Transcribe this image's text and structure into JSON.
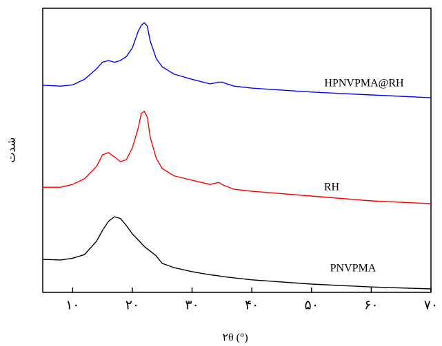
{
  "chart_data": {
    "type": "line",
    "xlabel": "۲θ (°)",
    "ylabel": "شدت",
    "xlim": [
      5,
      70
    ],
    "ylim": [
      0,
      100
    ],
    "xticks": [
      {
        "value": 10,
        "label": "۱۰"
      },
      {
        "value": 20,
        "label": "۲۰"
      },
      {
        "value": 30,
        "label": "۳۰"
      },
      {
        "value": 40,
        "label": "۴۰"
      },
      {
        "value": 50,
        "label": "۵۰"
      },
      {
        "value": 60,
        "label": "۶۰"
      },
      {
        "value": 70,
        "label": "۷۰"
      }
    ],
    "x": [
      5,
      8,
      10,
      12,
      14,
      15,
      16,
      17,
      18,
      19,
      20,
      21,
      21.5,
      22,
      22.5,
      23,
      24,
      25,
      27,
      30,
      33,
      34.5,
      35,
      37,
      40,
      50,
      60,
      70
    ],
    "series": [
      {
        "name": "HPNVPMA@RH",
        "color": "#0000ff",
        "values": [
          72.9,
          72.6,
          73,
          75,
          78.7,
          81,
          81.6,
          81,
          81.6,
          83,
          86,
          92,
          94,
          94.9,
          93.7,
          88.4,
          82.3,
          79.4,
          76.8,
          75,
          73.4,
          74,
          74,
          72.6,
          71.9,
          70.5,
          69.5,
          68.5
        ]
      },
      {
        "name": "RH",
        "color": "#ff0000",
        "values": [
          37,
          37,
          38,
          40,
          44.3,
          48.4,
          49.2,
          47.7,
          46,
          46.7,
          50.8,
          58,
          63,
          63.7,
          61.7,
          54.5,
          47.2,
          43.6,
          41,
          39.5,
          38,
          38.7,
          38,
          36.3,
          35.6,
          33.9,
          32.2,
          31.2
        ]
      },
      {
        "name": "PNVPMA",
        "color": "#000000",
        "values": [
          11.6,
          11.4,
          12,
          13.3,
          18,
          21.8,
          25,
          26.6,
          26,
          23.5,
          20.6,
          18.4,
          17.3,
          16.2,
          15.3,
          14.5,
          12.8,
          10.2,
          8.7,
          7.3,
          6.2,
          5.8,
          5.6,
          5.1,
          4.4,
          2.9,
          1.9,
          1.2
        ]
      }
    ]
  }
}
